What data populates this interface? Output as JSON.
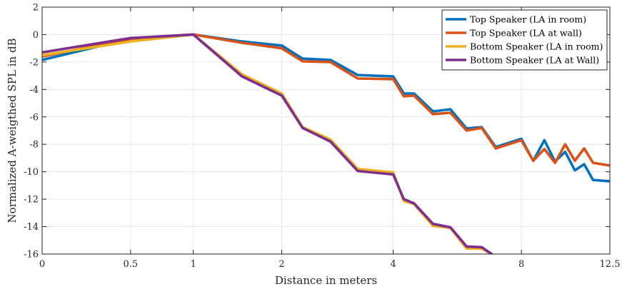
{
  "chart_data": {
    "type": "line",
    "title": "",
    "xlabel": "Distance in meters",
    "ylabel": "Normalized A-weigthed SPL in dB",
    "x_scale": "log2(1+d)",
    "xlim": [
      0,
      12.5
    ],
    "ylim": [
      -16,
      2
    ],
    "x_ticks": [
      0,
      0.5,
      1,
      2,
      4,
      8,
      12.5
    ],
    "x_tick_labels": [
      "0",
      "0.5",
      "1",
      "2",
      "4",
      "8",
      "12.5"
    ],
    "y_ticks": [
      2,
      0,
      -2,
      -4,
      -6,
      -8,
      -10,
      -12,
      -14,
      -16
    ],
    "y_tick_labels": [
      "2",
      "0",
      "-2",
      "-4",
      "-6",
      "-8",
      "-10",
      "-12",
      "-14",
      "-16"
    ],
    "grid": true,
    "legend_position": "top-right",
    "series": [
      {
        "name": "Top Speaker (LA in room)",
        "color": "#0072BD",
        "x": [
          0,
          0.5,
          1,
          1.5,
          2,
          2.3,
          2.75,
          3.25,
          4,
          4.25,
          4.5,
          5,
          5.5,
          6,
          6.5,
          7,
          8,
          8.5,
          9,
          9.5,
          10,
          10.5,
          11,
          11.5,
          12.5
        ],
        "y": [
          -1.85,
          -0.3,
          0,
          -0.5,
          -0.8,
          -1.75,
          -1.85,
          -2.95,
          -3.05,
          -4.3,
          -4.3,
          -5.6,
          -5.45,
          -6.85,
          -6.75,
          -8.2,
          -7.6,
          -9.2,
          -7.7,
          -9.25,
          -8.55,
          -9.9,
          -9.45,
          -10.6,
          -10.7
        ]
      },
      {
        "name": "Top Speaker (LA at wall)",
        "color": "#D95319",
        "x": [
          0,
          0.5,
          1,
          1.5,
          2,
          2.3,
          2.75,
          3.25,
          4,
          4.25,
          4.5,
          5,
          5.5,
          6,
          6.5,
          7,
          8,
          8.5,
          9,
          9.5,
          10,
          10.5,
          11,
          11.5,
          12.5
        ],
        "y": [
          -1.6,
          -0.3,
          0,
          -0.6,
          -1.0,
          -1.95,
          -2.0,
          -3.2,
          -3.25,
          -4.5,
          -4.45,
          -5.8,
          -5.7,
          -7.0,
          -6.8,
          -8.3,
          -7.7,
          -9.2,
          -8.35,
          -9.35,
          -8.0,
          -9.2,
          -8.3,
          -9.35,
          -9.55
        ]
      },
      {
        "name": "Bottom Speaker (LA in room)",
        "color": "#EDB120",
        "x": [
          0,
          0.5,
          1,
          1.5,
          2,
          2.3,
          2.75,
          3.25,
          4,
          4.25,
          4.5,
          5,
          5.5,
          6,
          6.5,
          7
        ],
        "y": [
          -1.5,
          -0.5,
          0,
          -2.9,
          -4.3,
          -6.75,
          -7.65,
          -9.8,
          -10.05,
          -12.15,
          -12.35,
          -13.95,
          -14.1,
          -15.6,
          -15.6,
          -16.2
        ]
      },
      {
        "name": "Bottom Speaker (LA at Wall)",
        "color": "#7E2F8E",
        "x": [
          0,
          0.5,
          1,
          1.5,
          2,
          2.3,
          2.75,
          3.25,
          4,
          4.25,
          4.5,
          5,
          5.5,
          6,
          6.5,
          7
        ],
        "y": [
          -1.3,
          -0.25,
          0,
          -3.05,
          -4.45,
          -6.8,
          -7.8,
          -9.95,
          -10.2,
          -12.0,
          -12.3,
          -13.8,
          -14.05,
          -15.45,
          -15.5,
          -16.2
        ]
      }
    ]
  }
}
